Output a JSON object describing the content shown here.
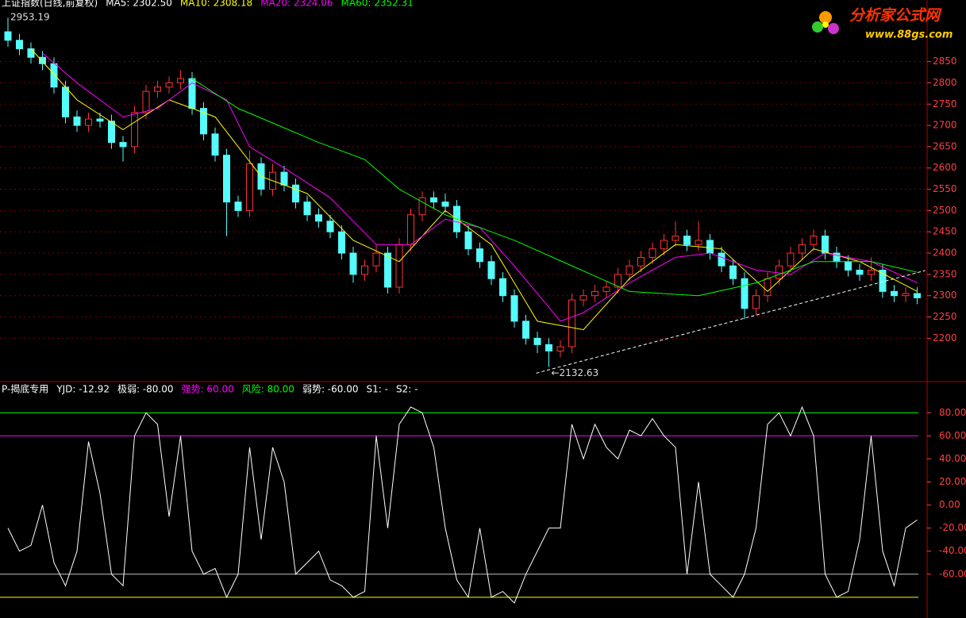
{
  "chart_data": [
    {
      "type": "candlestick",
      "header": [
        {
          "text": "上证指数(日线,前复权)",
          "color": "#ffffff"
        },
        {
          "text": "MA5: 2302.50",
          "color": "#ffffff"
        },
        {
          "text": "MA10: 2308.18",
          "color": "#ffff00"
        },
        {
          "text": "MA20: 2324.06",
          "color": "#ff00ff"
        },
        {
          "text": "MA60: 2352.31",
          "color": "#00ff00"
        }
      ],
      "open": [
        2920,
        2900,
        2880,
        2860,
        2845,
        2790,
        2720,
        2700,
        2715,
        2710,
        2660,
        2650,
        2730,
        2780,
        2790,
        2800,
        2810,
        2740,
        2680,
        2630,
        2520,
        2500,
        2610,
        2550,
        2590,
        2560,
        2520,
        2490,
        2475,
        2450,
        2400,
        2350,
        2370,
        2400,
        2320,
        2420,
        2490,
        2530,
        2520,
        2510,
        2450,
        2410,
        2380,
        2340,
        2300,
        2240,
        2200,
        2185,
        2170,
        2180,
        2290,
        2300,
        2310,
        2320,
        2350,
        2370,
        2390,
        2410,
        2430,
        2440,
        2420,
        2430,
        2400,
        2370,
        2340,
        2270,
        2300,
        2340,
        2370,
        2400,
        2420,
        2440,
        2400,
        2380,
        2360,
        2350,
        2360,
        2310,
        2300,
        2305
      ],
      "close": [
        2900,
        2880,
        2860,
        2845,
        2790,
        2720,
        2700,
        2715,
        2710,
        2660,
        2650,
        2730,
        2780,
        2790,
        2800,
        2810,
        2740,
        2680,
        2630,
        2520,
        2500,
        2610,
        2550,
        2590,
        2560,
        2520,
        2490,
        2475,
        2450,
        2400,
        2350,
        2370,
        2400,
        2320,
        2420,
        2490,
        2530,
        2520,
        2510,
        2450,
        2410,
        2380,
        2340,
        2300,
        2240,
        2200,
        2185,
        2170,
        2180,
        2290,
        2300,
        2310,
        2320,
        2350,
        2370,
        2390,
        2410,
        2430,
        2440,
        2420,
        2430,
        2400,
        2370,
        2340,
        2270,
        2300,
        2340,
        2370,
        2400,
        2420,
        2440,
        2400,
        2380,
        2360,
        2350,
        2360,
        2310,
        2300,
        2305,
        2295
      ],
      "high": [
        2953.19,
        2915,
        2895,
        2875,
        2860,
        2805,
        2735,
        2730,
        2730,
        2725,
        2675,
        2745,
        2795,
        2805,
        2815,
        2830,
        2825,
        2755,
        2695,
        2645,
        2535,
        2640,
        2625,
        2610,
        2605,
        2575,
        2535,
        2505,
        2490,
        2465,
        2415,
        2385,
        2420,
        2415,
        2435,
        2505,
        2545,
        2545,
        2540,
        2525,
        2465,
        2425,
        2395,
        2355,
        2315,
        2255,
        2215,
        2200,
        2195,
        2305,
        2315,
        2325,
        2335,
        2365,
        2385,
        2405,
        2425,
        2445,
        2475,
        2455,
        2475,
        2445,
        2415,
        2385,
        2355,
        2315,
        2355,
        2385,
        2415,
        2435,
        2455,
        2455,
        2415,
        2395,
        2375,
        2390,
        2375,
        2325,
        2320,
        2320
      ],
      "low": [
        2885,
        2865,
        2845,
        2830,
        2775,
        2705,
        2685,
        2685,
        2695,
        2645,
        2615,
        2635,
        2715,
        2765,
        2775,
        2785,
        2725,
        2665,
        2615,
        2440,
        2485,
        2485,
        2535,
        2535,
        2545,
        2505,
        2475,
        2460,
        2435,
        2385,
        2330,
        2335,
        2355,
        2305,
        2305,
        2405,
        2475,
        2505,
        2495,
        2435,
        2395,
        2365,
        2325,
        2285,
        2225,
        2185,
        2165,
        2132.63,
        2155,
        2165,
        2275,
        2285,
        2295,
        2305,
        2335,
        2355,
        2375,
        2395,
        2415,
        2405,
        2405,
        2385,
        2355,
        2325,
        2245,
        2255,
        2285,
        2325,
        2355,
        2385,
        2405,
        2385,
        2365,
        2345,
        2335,
        2335,
        2295,
        2285,
        2285,
        2280
      ],
      "up_color": "#ff3232",
      "down_color": "#54fcfc",
      "lines": [
        {
          "name": "MA10",
          "color": "#ffff00",
          "x": [
            2,
            6,
            10,
            14,
            18,
            22,
            26,
            30,
            34,
            38,
            42,
            46,
            50,
            54,
            58,
            62,
            66,
            70,
            74,
            79
          ],
          "values": [
            2880,
            2760,
            2690,
            2760,
            2720,
            2580,
            2540,
            2430,
            2380,
            2500,
            2420,
            2240,
            2220,
            2340,
            2420,
            2410,
            2310,
            2410,
            2380,
            2310
          ]
        },
        {
          "name": "MA20",
          "color": "#ff00ff",
          "x": [
            3,
            6,
            10,
            13,
            16,
            19,
            21,
            24,
            28,
            32,
            35,
            38,
            41,
            44,
            48,
            50,
            54,
            58,
            61,
            65,
            68,
            71,
            75,
            79
          ],
          "values": [
            2870,
            2800,
            2720,
            2740,
            2800,
            2760,
            2650,
            2600,
            2530,
            2420,
            2420,
            2480,
            2460,
            2370,
            2240,
            2260,
            2330,
            2390,
            2400,
            2360,
            2350,
            2400,
            2380,
            2330
          ]
        },
        {
          "name": "MA60",
          "color": "#00ff00",
          "x": [
            16,
            20,
            27,
            31,
            34,
            38,
            44,
            49,
            54,
            60,
            65,
            70,
            75,
            79
          ],
          "values": [
            2810,
            2740,
            2660,
            2620,
            2550,
            2490,
            2430,
            2370,
            2310,
            2300,
            2330,
            2380,
            2380,
            2355
          ]
        }
      ],
      "trendline": {
        "x": [
          45.9,
          79.7
        ],
        "values": [
          2118,
          2359
        ]
      },
      "annotations": [
        {
          "text": "2953.19",
          "x": 0,
          "value": 2953.19
        },
        {
          "text": "←2132.63",
          "x": 47,
          "value": 2132.63
        }
      ],
      "ylim": [
        2100,
        2976
      ],
      "yticks": [
        2200,
        2250,
        2300,
        2350,
        2400,
        2450,
        2500,
        2550,
        2600,
        2650,
        2700,
        2750,
        2800,
        2850
      ],
      "grid": true
    },
    {
      "type": "line",
      "header": [
        {
          "text": "P-揭底专用",
          "color": "#ffffff"
        },
        {
          "text": "YJD: -12.92",
          "color": "#ffffff"
        },
        {
          "text": "极弱: -80.00",
          "color": "#ffffff"
        },
        {
          "text": "强势: 60.00",
          "color": "#ff00ff"
        },
        {
          "text": "风险: 80.00",
          "color": "#00ff00"
        },
        {
          "text": "弱势: -60.00",
          "color": "#ffffff"
        },
        {
          "text": "S1: -",
          "color": "#ffffff"
        },
        {
          "text": "S2: -",
          "color": "#ffffff"
        }
      ],
      "series": [
        {
          "name": "YJD",
          "color": "#ffffff",
          "values": [
            -20,
            -40,
            -35,
            0,
            -50,
            -70,
            -40,
            55,
            10,
            -60,
            -70,
            60,
            80,
            70,
            -10,
            60,
            -40,
            -60,
            -55,
            -80,
            -60,
            50,
            -30,
            50,
            20,
            -60,
            -50,
            -40,
            -65,
            -70,
            -80,
            -75,
            60,
            -20,
            70,
            85,
            80,
            50,
            -20,
            -65,
            -80,
            -20,
            -80,
            -75,
            -85,
            -60,
            -40,
            -20,
            -20,
            70,
            40,
            70,
            50,
            40,
            65,
            60,
            75,
            60,
            50,
            -60,
            20,
            -60,
            -70,
            -80,
            -60,
            -20,
            70,
            80,
            60,
            85,
            60,
            -60,
            -80,
            -75,
            -30,
            60,
            -40,
            -70,
            -20,
            -12.92
          ]
        }
      ],
      "reference_lines": [
        {
          "value": 80,
          "color": "#00ff00"
        },
        {
          "value": 60,
          "color": "#ff00ff"
        },
        {
          "value": -60,
          "color": "#c0c0c0"
        },
        {
          "value": -80,
          "color": "#ffff00"
        }
      ],
      "ylim": [
        -98,
        105
      ],
      "yticks": [
        {
          "value": 80,
          "label": "80.00"
        },
        {
          "value": 60,
          "label": "60.00"
        },
        {
          "value": 40,
          "label": "40.00"
        },
        {
          "value": 20,
          "label": "20.00"
        },
        {
          "value": 0,
          "label": "0.00"
        },
        {
          "value": -20,
          "label": "-20.00"
        },
        {
          "value": -40,
          "label": "-40.00"
        },
        {
          "value": -60,
          "label": "-60.00"
        }
      ]
    }
  ],
  "logo": {
    "title": "分析家公式网",
    "url": "www.88gs.com"
  }
}
